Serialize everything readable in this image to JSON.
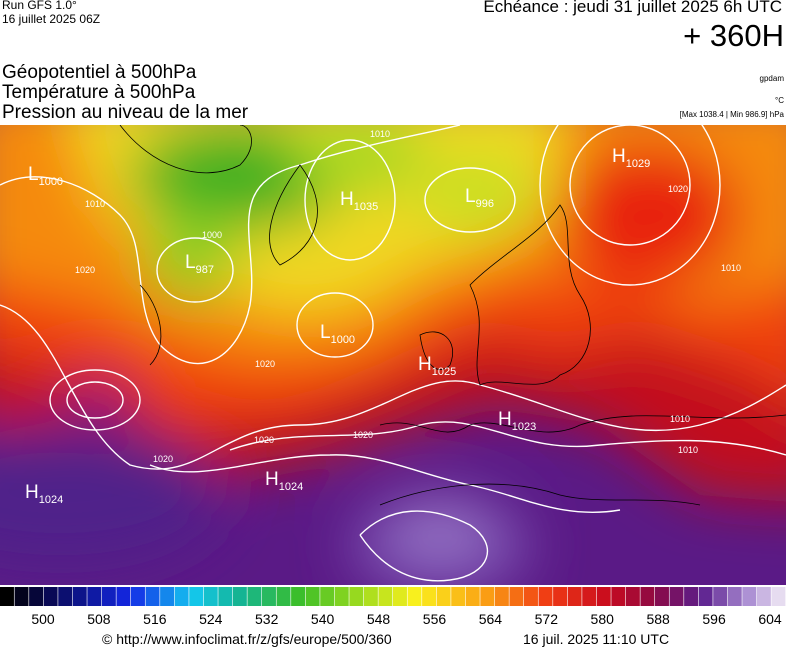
{
  "header": {
    "run": "Run GFS 1.0°",
    "run_date": "16 juillet 2025 06Z",
    "valid": "Echéance : jeudi 31 juillet 2025 6h UTC",
    "lead": "+ 360H",
    "fields": [
      "Géopotentiel à 500hPa",
      "Température à 500hPa",
      "Pression au niveau de la mer"
    ],
    "units": [
      "gpdam",
      "°C",
      "[Max 1038.4 | Min 986.9] hPa"
    ]
  },
  "map": {
    "centers": [
      {
        "letter": "L",
        "value": 1000
      },
      {
        "letter": "H",
        "value": 1035
      },
      {
        "letter": "L",
        "value": 996
      },
      {
        "letter": "H",
        "value": 1029
      },
      {
        "letter": "L",
        "value": 987
      },
      {
        "letter": "L",
        "value": 1000
      },
      {
        "letter": "H",
        "value": 1025
      },
      {
        "letter": "H",
        "value": 1023
      },
      {
        "letter": "H",
        "value": 1024
      },
      {
        "letter": "H",
        "value": 1024
      }
    ],
    "isobar_labels": [
      1010,
      1000,
      1020,
      1010,
      1020,
      1020,
      1020,
      1020,
      1020,
      1010,
      1010,
      1010
    ]
  },
  "colorbar": {
    "ticks": [
      500,
      508,
      516,
      524,
      532,
      540,
      548,
      556,
      564,
      572,
      580,
      588,
      596,
      604
    ]
  },
  "footer": {
    "source": "© http://www.infoclimat.fr/z/gfs/europe/500/360",
    "timestamp": "16 juil. 2025 11:10 UTC"
  }
}
